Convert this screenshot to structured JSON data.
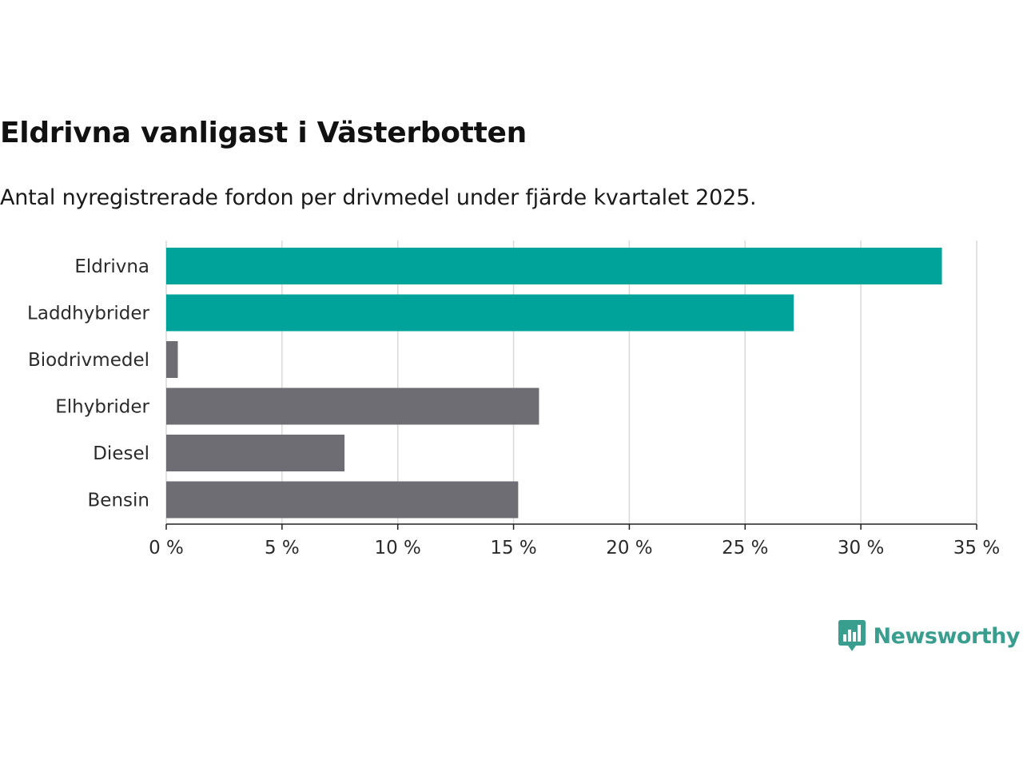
{
  "title": "Eldrivna vanligast i Västerbotten",
  "subtitle": "Antal nyregistrerade fordon per drivmedel under fjärde kvartalet 2025.",
  "brand": {
    "name": "Newsworthy",
    "icon": "bar-chart-speech-bubble-icon",
    "color": "#3a9e8f"
  },
  "colors": {
    "highlight": "#00a39a",
    "muted": "#6e6d74",
    "grid": "#d9d9d9",
    "axis": "#222222"
  },
  "chart_data": {
    "type": "bar",
    "orientation": "horizontal",
    "categories": [
      "Eldrivna",
      "Laddhybrider",
      "Biodrivmedel",
      "Elhybrider",
      "Diesel",
      "Bensin"
    ],
    "values": [
      33.5,
      27.1,
      0.5,
      16.1,
      7.7,
      15.2
    ],
    "highlighted": [
      true,
      true,
      false,
      false,
      false,
      false
    ],
    "xlim": [
      0,
      35
    ],
    "xticks": [
      0,
      5,
      10,
      15,
      20,
      25,
      30,
      35
    ],
    "tick_labels": [
      "0 %",
      "5 %",
      "10 %",
      "15 %",
      "20 %",
      "25 %",
      "30 %",
      "35 %"
    ],
    "grid": "vertical",
    "unit": "%"
  }
}
